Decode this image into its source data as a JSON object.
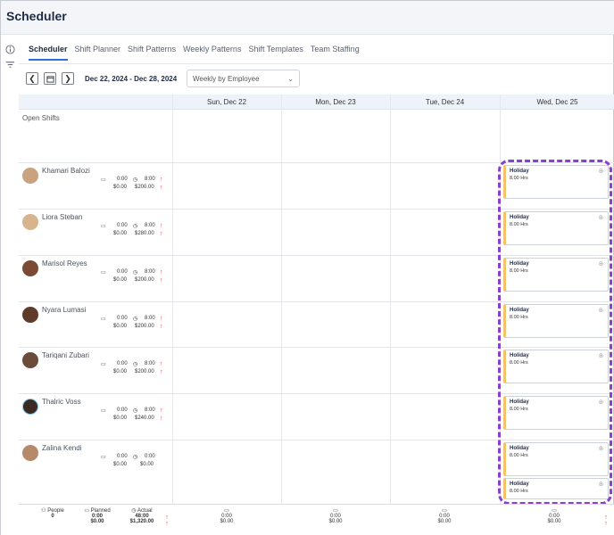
{
  "app": {
    "title": "Scheduler"
  },
  "tabs": [
    {
      "label": "Scheduler",
      "active": true
    },
    {
      "label": "Shift Planner",
      "active": false
    },
    {
      "label": "Shift Patterns",
      "active": false
    },
    {
      "label": "Weekly Patterns",
      "active": false
    },
    {
      "label": "Shift Templates",
      "active": false
    },
    {
      "label": "Team Staffing",
      "active": false
    }
  ],
  "toolbar": {
    "date_range": "Dec 22, 2024 - Dec 28, 2024",
    "view_select": "Weekly by Employee"
  },
  "days": [
    "Sun, Dec 22",
    "Mon, Dec 23",
    "Tue, Dec 24",
    "Wed, Dec 25"
  ],
  "open_shifts_label": "Open Shifts",
  "employees": [
    {
      "name": "Khamari Balozi",
      "planned_hrs": "0:00",
      "actual_hrs": "8:00",
      "planned_cost": "$0.00",
      "actual_cost": "$200.00"
    },
    {
      "name": "Liora Steban",
      "planned_hrs": "0:00",
      "actual_hrs": "8:00",
      "planned_cost": "$0.00",
      "actual_cost": "$280.00"
    },
    {
      "name": "Marisol Reyes",
      "planned_hrs": "0:00",
      "actual_hrs": "8:00",
      "planned_cost": "$0.00",
      "actual_cost": "$200.00"
    },
    {
      "name": "Nyara Lumasi",
      "planned_hrs": "0:00",
      "actual_hrs": "8:00",
      "planned_cost": "$0.00",
      "actual_cost": "$200.00"
    },
    {
      "name": "Tariqani Zubari",
      "planned_hrs": "0:00",
      "actual_hrs": "8:00",
      "planned_cost": "$0.00",
      "actual_cost": "$200.00"
    },
    {
      "name": "Thalric Voss",
      "planned_hrs": "0:00",
      "actual_hrs": "8:00",
      "planned_cost": "$0.00",
      "actual_cost": "$240.00"
    },
    {
      "name": "Zalina Kendi",
      "planned_hrs": "0:00",
      "actual_hrs": "0:00",
      "planned_cost": "$0.00",
      "actual_cost": "$0.00"
    }
  ],
  "holiday": {
    "title": "Holiday",
    "hours": "8.00 Hrs"
  },
  "footer": {
    "people_label": "People",
    "people_value": "0",
    "planned_label": "Planned",
    "planned_hrs": "0:00",
    "planned_cost": "$0.00",
    "actual_label": "Actual",
    "actual_hrs": "48:00",
    "actual_cost": "$1,320.00",
    "days": [
      {
        "hrs": "0:00",
        "cost": "$0.00"
      },
      {
        "hrs": "0:00",
        "cost": "$0.00"
      },
      {
        "hrs": "0:00",
        "cost": "$0.00"
      },
      {
        "hrs": "0:00",
        "cost": "$0.00"
      }
    ]
  },
  "colors": {
    "accent": "#2f6fdb",
    "holiday_stripe": "#f2c36b",
    "highlight": "#8b3fcf",
    "over_budget_arrow": "#e03b3b"
  }
}
